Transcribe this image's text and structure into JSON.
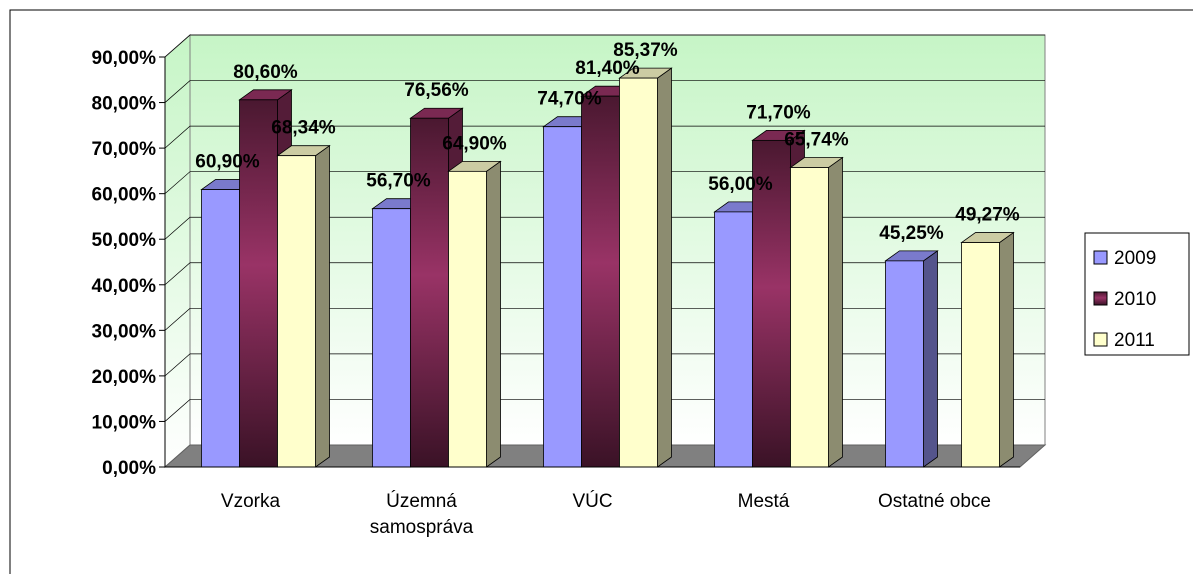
{
  "chart_data": {
    "type": "bar3d",
    "categories": [
      "Vzorka",
      "Územná samospráva",
      "VÚC",
      "Mestá",
      "Ostatné obce"
    ],
    "series": [
      {
        "name": "2009",
        "color": "#9999ff",
        "values": [
          60.9,
          56.7,
          74.7,
          56.0,
          45.25
        ],
        "value_labels": [
          "60,90%",
          "56,70%",
          "74,70%",
          "56,00%",
          "45,25%"
        ]
      },
      {
        "name": "2010",
        "color": "#993366",
        "values": [
          80.6,
          76.56,
          81.4,
          71.7,
          null
        ],
        "value_labels": [
          "80,60%",
          "76,56%",
          "81,40%",
          "71,70%",
          null
        ]
      },
      {
        "name": "2011",
        "color": "#ffffcc",
        "values": [
          68.34,
          64.9,
          85.37,
          65.74,
          49.27
        ],
        "value_labels": [
          "68,34%",
          "64,90%",
          "85,37%",
          "65,74%",
          "49,27%"
        ]
      }
    ],
    "ylim": [
      0,
      90
    ],
    "yticks": [
      {
        "value": 0,
        "label": "0,00%"
      },
      {
        "value": 10,
        "label": "10,00%"
      },
      {
        "value": 20,
        "label": "20,00%"
      },
      {
        "value": 30,
        "label": "30,00%"
      },
      {
        "value": 40,
        "label": "40,00%"
      },
      {
        "value": 50,
        "label": "50,00%"
      },
      {
        "value": 60,
        "label": "60,00%"
      },
      {
        "value": 70,
        "label": "70,00%"
      },
      {
        "value": 80,
        "label": "80,00%"
      },
      {
        "value": 90,
        "label": "90,00%"
      }
    ],
    "grid": true,
    "legend": "right"
  }
}
